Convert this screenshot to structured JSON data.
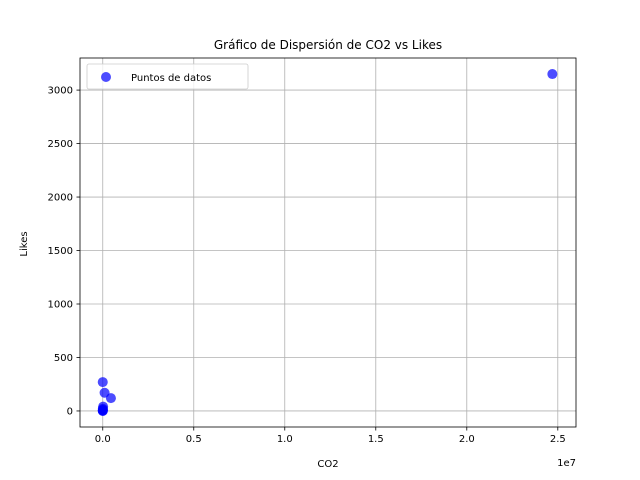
{
  "chart_data": {
    "type": "scatter",
    "title": "Gráfico de Dispersión de CO2 vs Likes",
    "xlabel": "CO2",
    "ylabel": "Likes",
    "x_offset_label": "1e7",
    "xlim": [
      -1250000,
      26000000
    ],
    "ylim": [
      -150,
      3300
    ],
    "xticks": [
      0,
      5000000,
      10000000,
      15000000,
      20000000,
      25000000
    ],
    "xtick_labels": [
      "0.0",
      "0.5",
      "1.0",
      "1.5",
      "2.0",
      "2.5"
    ],
    "yticks": [
      0,
      500,
      1000,
      1500,
      2000,
      2500,
      3000
    ],
    "ytick_labels": [
      "0",
      "500",
      "1000",
      "1500",
      "2000",
      "2500",
      "3000"
    ],
    "grid": true,
    "legend": {
      "position": "top-left",
      "entries": [
        "Puntos de datos"
      ]
    },
    "series": [
      {
        "name": "Puntos de datos",
        "color": "#0000ff",
        "points": [
          {
            "x": 0,
            "y": 270
          },
          {
            "x": 100000,
            "y": 170
          },
          {
            "x": 450000,
            "y": 120
          },
          {
            "x": 20000,
            "y": 40
          },
          {
            "x": 5000,
            "y": 20
          },
          {
            "x": 10000,
            "y": 10
          },
          {
            "x": 2000,
            "y": 5
          },
          {
            "x": 1000,
            "y": 0
          },
          {
            "x": 3000,
            "y": 2
          },
          {
            "x": 24700000,
            "y": 3150
          }
        ]
      }
    ]
  }
}
